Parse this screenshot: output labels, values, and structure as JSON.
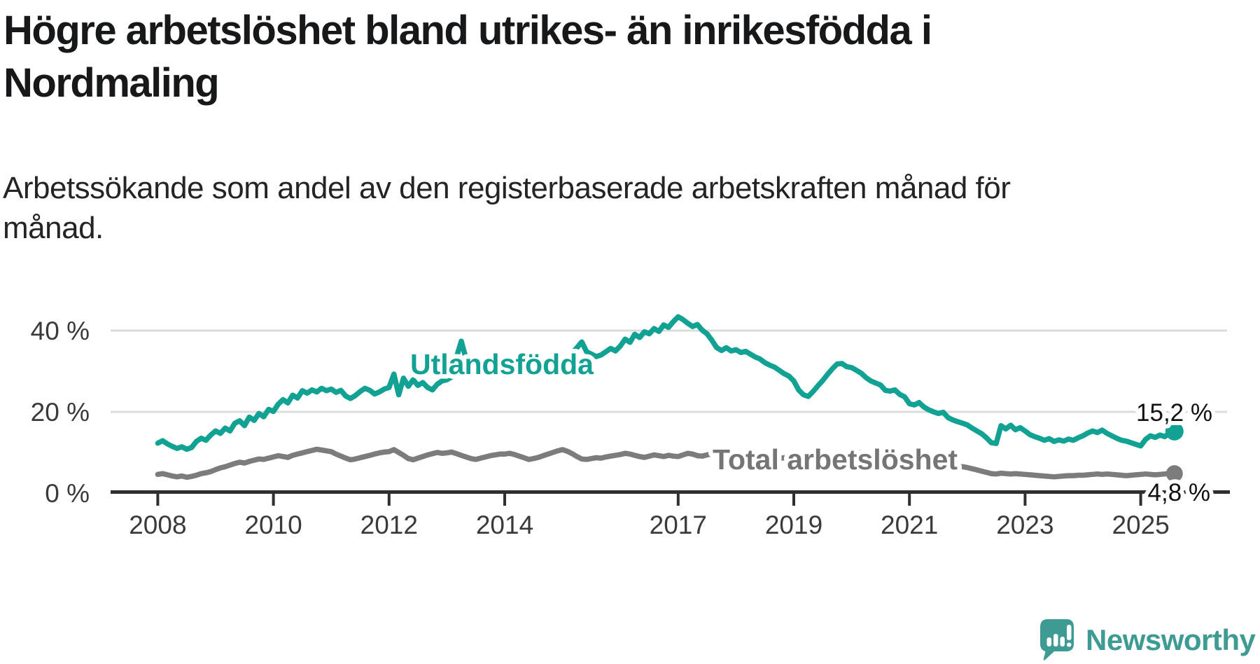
{
  "header": {
    "title_line1": "Högre arbetslöshet bland utrikes- än inrikesfödda i",
    "title_line2": "Nordmaling",
    "subtitle_line1": "Arbetssökande som andel av den registerbaserade arbetskraften månad för",
    "subtitle_line2": "månad."
  },
  "colors": {
    "teal_series": "#12A294",
    "gray_series": "#7C7C7C",
    "gray_label": "#757575",
    "grid": "#DCDCDC",
    "axis": "#2F2F2F",
    "axis_text": "#3A3A3A",
    "value_label_text": "#111111",
    "logo_teal": "#3E9B93",
    "background": "#FFFFFF"
  },
  "logo": {
    "text": "Newsworthy",
    "icon": "speech-bubble-bar-chart-exclamation"
  },
  "chart_data": {
    "type": "line",
    "title": "Högre arbetslöshet bland utrikes- än inrikesfödda i Nordmaling",
    "subtitle": "Arbetssökande som andel av den registerbaserade arbetskraften månad för månad.",
    "frequency": "monthly",
    "x_start": "2008-01",
    "x_end": "2025-08",
    "xlabel": "",
    "ylabel": "",
    "ylim": [
      0,
      46
    ],
    "grid": "horizontal",
    "legend_position": "inline-on-line",
    "y_ticks": [
      {
        "value": 0,
        "label": "0 %"
      },
      {
        "value": 20,
        "label": "20 %"
      },
      {
        "value": 40,
        "label": "40 %"
      }
    ],
    "x_tick_years": [
      2008,
      2010,
      2012,
      2014,
      2017,
      2019,
      2021,
      2023,
      2025
    ],
    "x_tick_labels": [
      "2008",
      "2010",
      "2012",
      "2014",
      "2017",
      "2019",
      "2021",
      "2023",
      "2025"
    ],
    "series": [
      {
        "name": "Utlandsfödda",
        "end_label": "15,2 %",
        "end_value": 15.2,
        "values": [
          12.3,
          12.9,
          12.1,
          11.5,
          11.0,
          11.4,
          10.8,
          11.2,
          12.7,
          13.5,
          13.0,
          14.3,
          15.3,
          14.7,
          16.0,
          15.3,
          17.2,
          17.8,
          16.6,
          18.7,
          17.9,
          19.6,
          18.8,
          20.6,
          20.1,
          21.9,
          23.0,
          22.2,
          24.1,
          23.4,
          25.2,
          24.6,
          25.4,
          24.9,
          25.8,
          25.2,
          25.6,
          24.8,
          25.3,
          23.9,
          23.3,
          24.0,
          25.0,
          25.8,
          25.3,
          24.4,
          24.9,
          25.6,
          26.0,
          29.3,
          24.2,
          28.3,
          26.3,
          27.9,
          26.5,
          27.2,
          26.0,
          25.4,
          26.8,
          27.6,
          27.9,
          28.6,
          33.5,
          37.4,
          33.0,
          30.8,
          29.6,
          30.3,
          29.5,
          30.4,
          29.8,
          30.6,
          30.1,
          30.9,
          30.4,
          31.2,
          30.6,
          29.8,
          30.5,
          29.9,
          30.7,
          31.3,
          30.8,
          31.5,
          31.9,
          32.8,
          34.5,
          35.8,
          37.2,
          34.8,
          34.2,
          33.6,
          34.0,
          34.8,
          35.6,
          35.0,
          36.2,
          37.9,
          37.1,
          39.1,
          38.3,
          39.7,
          39.2,
          40.5,
          39.8,
          41.4,
          40.8,
          42.2,
          43.4,
          42.7,
          41.8,
          41.0,
          41.5,
          40.1,
          39.2,
          37.6,
          35.8,
          35.1,
          35.8,
          35.0,
          35.3,
          34.6,
          34.9,
          34.2,
          33.5,
          33.0,
          32.1,
          31.5,
          31.0,
          30.2,
          29.4,
          28.8,
          27.6,
          25.4,
          24.2,
          23.8,
          25.0,
          26.4,
          27.7,
          29.2,
          30.6,
          31.8,
          31.9,
          31.1,
          30.9,
          30.2,
          29.5,
          28.4,
          27.6,
          27.1,
          26.6,
          25.3,
          25.1,
          25.4,
          24.3,
          23.7,
          22.0,
          21.7,
          22.3,
          21.2,
          20.5,
          20.0,
          19.6,
          19.9,
          18.6,
          18.0,
          17.6,
          17.2,
          16.8,
          16.0,
          15.3,
          14.6,
          13.6,
          12.4,
          12.2,
          16.6,
          15.8,
          16.7,
          15.6,
          16.1,
          15.3,
          14.4,
          13.9,
          13.5,
          13.0,
          13.4,
          12.7,
          13.1,
          12.8,
          13.3,
          13.0,
          13.6,
          14.1,
          14.8,
          15.3,
          14.9,
          15.5,
          14.7,
          14.1,
          13.5,
          13.0,
          12.8,
          12.4,
          12.0,
          11.6,
          13.2,
          14.1,
          13.7,
          14.3,
          13.9,
          14.8,
          15.2
        ]
      },
      {
        "name": "Total arbetslöshet",
        "end_label": "4,8 %",
        "end_value": 4.8,
        "values": [
          4.6,
          4.8,
          4.5,
          4.2,
          4.0,
          4.2,
          3.9,
          4.1,
          4.4,
          4.8,
          5.0,
          5.3,
          5.8,
          6.2,
          6.5,
          6.9,
          7.3,
          7.6,
          7.4,
          7.8,
          8.1,
          8.4,
          8.3,
          8.6,
          8.9,
          9.2,
          9.0,
          8.8,
          9.3,
          9.6,
          9.9,
          10.2,
          10.5,
          10.8,
          10.6,
          10.4,
          10.2,
          9.6,
          9.1,
          8.6,
          8.2,
          8.4,
          8.7,
          9.0,
          9.3,
          9.6,
          9.9,
          10.1,
          10.2,
          10.7,
          10.0,
          9.3,
          8.5,
          8.2,
          8.6,
          9.0,
          9.4,
          9.7,
          10.0,
          9.8,
          9.9,
          10.1,
          9.7,
          9.3,
          8.9,
          8.5,
          8.3,
          8.6,
          8.9,
          9.2,
          9.4,
          9.6,
          9.6,
          9.8,
          9.5,
          9.1,
          8.7,
          8.3,
          8.5,
          8.8,
          9.2,
          9.6,
          10.0,
          10.4,
          10.7,
          10.3,
          9.7,
          9.0,
          8.4,
          8.3,
          8.5,
          8.7,
          8.6,
          8.9,
          9.1,
          9.3,
          9.5,
          9.8,
          9.6,
          9.3,
          9.0,
          8.8,
          9.1,
          9.4,
          9.2,
          9.0,
          9.3,
          9.1,
          9.0,
          9.4,
          9.8,
          9.6,
          9.2,
          9.1,
          9.4,
          9.7,
          9.9,
          9.6,
          9.3,
          9.5,
          9.3,
          9.1,
          8.9,
          8.7,
          8.9,
          8.6,
          8.4,
          8.6,
          8.8,
          8.5,
          8.7,
          8.9,
          8.6,
          8.4,
          8.2,
          8.5,
          8.7,
          8.9,
          9.1,
          8.8,
          8.6,
          8.9,
          9.2,
          9.4,
          9.6,
          9.8,
          10.0,
          9.7,
          9.9,
          9.6,
          9.4,
          9.2,
          9.0,
          8.8,
          8.6,
          8.4,
          8.2,
          8.0,
          7.8,
          7.6,
          7.4,
          7.2,
          7.0,
          6.9,
          6.8,
          6.7,
          6.6,
          6.5,
          6.3,
          6.0,
          5.7,
          5.4,
          5.1,
          4.8,
          4.7,
          4.9,
          4.8,
          4.7,
          4.8,
          4.7,
          4.6,
          4.5,
          4.4,
          4.3,
          4.2,
          4.1,
          4.0,
          4.1,
          4.2,
          4.3,
          4.3,
          4.4,
          4.4,
          4.5,
          4.6,
          4.7,
          4.6,
          4.7,
          4.6,
          4.5,
          4.4,
          4.3,
          4.4,
          4.5,
          4.6,
          4.7,
          4.6,
          4.5,
          4.6,
          4.7,
          4.9,
          4.8
        ]
      }
    ]
  }
}
